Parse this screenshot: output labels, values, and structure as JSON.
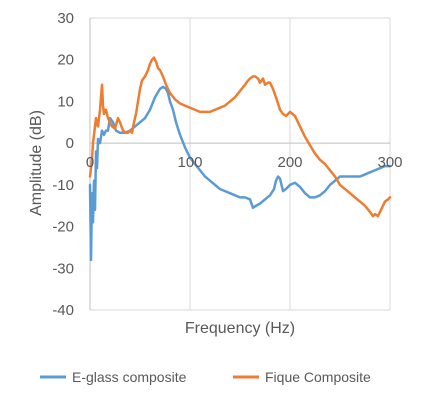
{
  "chart_data": {
    "type": "line",
    "title": "",
    "xlabel": "Frequency (Hz)",
    "ylabel": "Amplitude (dB)",
    "xlim": [
      0,
      300
    ],
    "ylim": [
      -40,
      30
    ],
    "xticks": [
      0,
      100,
      200,
      300
    ],
    "yticks": [
      30,
      20,
      10,
      0,
      -10,
      -20,
      -30,
      -40
    ],
    "grid": "vertical",
    "legend_position": "bottom",
    "series": [
      {
        "name": "E-glass composite",
        "color": "#5B9BD5",
        "x": [
          0,
          1,
          2,
          3,
          4,
          5,
          6,
          7,
          8,
          10,
          12,
          14,
          16,
          18,
          20,
          23,
          26,
          30,
          35,
          40,
          45,
          50,
          55,
          60,
          65,
          70,
          73,
          76,
          78,
          80,
          83,
          86,
          90,
          95,
          100,
          105,
          110,
          115,
          120,
          125,
          130,
          135,
          140,
          145,
          150,
          155,
          160,
          163,
          166,
          170,
          175,
          180,
          184,
          186,
          188,
          190,
          193,
          196,
          200,
          205,
          210,
          215,
          220,
          225,
          230,
          235,
          240,
          245,
          250,
          255,
          260,
          265,
          270,
          275,
          280,
          285,
          290,
          295,
          300
        ],
        "y": [
          -10,
          -28,
          -12,
          -19,
          -9,
          -16,
          -2,
          -6,
          1,
          0,
          3,
          2,
          3,
          3,
          6,
          5,
          3,
          2.5,
          2.5,
          3,
          4,
          5,
          6,
          8,
          11,
          13,
          13.5,
          13,
          12,
          10,
          8,
          5,
          2,
          -1,
          -3.5,
          -5,
          -6.5,
          -8,
          -9,
          -10,
          -11,
          -11.5,
          -12,
          -12.5,
          -13,
          -13,
          -13.5,
          -15.5,
          -15,
          -14.5,
          -13.5,
          -12.5,
          -11,
          -9,
          -8,
          -8.5,
          -11.5,
          -11,
          -10,
          -9.5,
          -10.5,
          -12,
          -13,
          -13,
          -12.5,
          -11.5,
          -10,
          -9,
          -8,
          -8,
          -8,
          -8,
          -8,
          -7.5,
          -7,
          -6.5,
          -6,
          -5.5,
          -5.5
        ]
      },
      {
        "name": "Fique Composite",
        "color": "#ED7D31",
        "x": [
          0,
          1,
          2,
          3,
          4,
          5,
          6,
          8,
          10,
          12,
          13,
          14,
          15,
          16,
          18,
          20,
          22,
          25,
          28,
          30,
          33,
          36,
          38,
          40,
          42,
          44,
          46,
          48,
          50,
          52,
          55,
          58,
          60,
          62,
          64,
          66,
          68,
          70,
          73,
          76,
          80,
          85,
          90,
          95,
          100,
          105,
          110,
          115,
          120,
          125,
          130,
          135,
          140,
          145,
          150,
          155,
          158,
          160,
          163,
          165,
          168,
          170,
          173,
          175,
          178,
          180,
          183,
          186,
          190,
          193,
          196,
          200,
          205,
          210,
          215,
          220,
          225,
          230,
          235,
          240,
          245,
          250,
          255,
          260,
          265,
          270,
          275,
          280,
          283,
          285,
          288,
          290,
          293,
          295,
          298,
          300
        ],
        "y": [
          -8,
          -6,
          -4,
          0,
          2,
          4,
          6,
          4,
          8,
          14,
          9,
          7,
          8,
          8,
          6,
          5,
          4,
          3.5,
          6,
          5,
          3,
          2.5,
          2.5,
          3,
          2.5,
          5,
          7,
          10,
          13,
          15,
          16,
          17.5,
          19,
          20,
          20.5,
          19.5,
          18,
          17.5,
          16,
          14,
          12,
          10.5,
          9.5,
          9,
          8.5,
          8,
          7.5,
          7.5,
          7.5,
          8,
          8.5,
          9,
          10,
          11,
          12.5,
          14,
          15,
          15.5,
          16,
          16,
          15.5,
          14.5,
          15.5,
          14,
          14.5,
          14.5,
          13,
          11,
          8,
          7,
          6.5,
          7.5,
          6.5,
          4,
          1.5,
          -0.5,
          -2.5,
          -4,
          -5,
          -6.5,
          -8,
          -10,
          -11,
          -12,
          -13,
          -14,
          -15,
          -16.5,
          -17.5,
          -17,
          -17.5,
          -16.5,
          -15,
          -14,
          -13.5,
          -13
        ]
      }
    ]
  }
}
